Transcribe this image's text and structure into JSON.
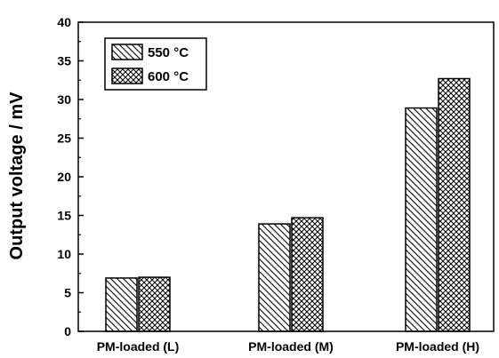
{
  "chart_data": {
    "type": "bar",
    "title": "",
    "xlabel": "",
    "ylabel": "Output voltage / mV",
    "ylim": [
      0,
      40
    ],
    "yticks": [
      0,
      5,
      10,
      15,
      20,
      25,
      30,
      35,
      40
    ],
    "categories": [
      "PM-loaded (L)",
      "PM-loaded (M)",
      "PM-loaded (H)"
    ],
    "series": [
      {
        "name": "550 °C",
        "values": [
          6.9,
          13.9,
          28.9
        ],
        "pattern": "diagonal-hatch",
        "color": "#000000"
      },
      {
        "name": "600 °C",
        "values": [
          7.0,
          14.7,
          32.7
        ],
        "pattern": "crosshatch",
        "color": "#000000"
      }
    ],
    "legend": {
      "position": "top-left"
    },
    "grid": false
  }
}
